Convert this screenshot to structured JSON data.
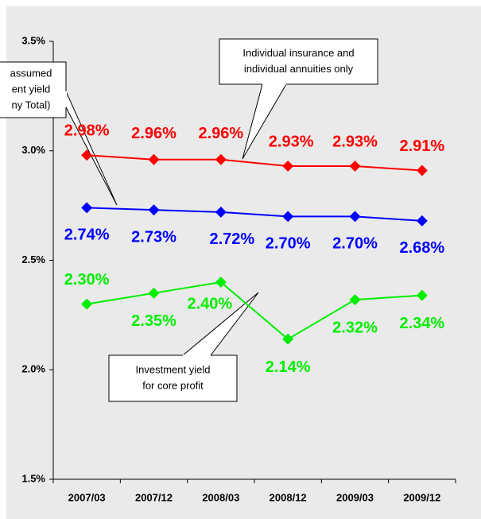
{
  "chart_data": {
    "type": "line",
    "categories": [
      "2007/03",
      "2007/12",
      "2008/03",
      "2008/12",
      "2009/03",
      "2009/12"
    ],
    "series": [
      {
        "color": "#ff0000",
        "values": [
          2.98,
          2.96,
          2.96,
          2.93,
          2.93,
          2.91
        ],
        "value_labels": [
          "2.98%",
          "2.96%",
          "2.96%",
          "2.93%",
          "2.93%",
          "2.91%"
        ]
      },
      {
        "color": "#0000ff",
        "values": [
          2.74,
          2.73,
          2.72,
          2.7,
          2.7,
          2.68
        ],
        "value_labels": [
          "2.74%",
          "2.73%",
          "2.72%",
          "2.70%",
          "2.70%",
          "2.68%"
        ]
      },
      {
        "color": "#00ee00",
        "values": [
          2.3,
          2.35,
          2.4,
          2.14,
          2.32,
          2.34
        ],
        "value_labels": [
          "2.30%",
          "2.35%",
          "2.40%",
          "2.14%",
          "2.32%",
          "2.34%"
        ]
      }
    ],
    "ylim": [
      1.5,
      3.5
    ],
    "yticks": [
      {
        "value": 1.5,
        "label": "1.5%"
      },
      {
        "value": 2.0,
        "label": "2.0%"
      },
      {
        "value": 2.5,
        "label": "2.5%"
      },
      {
        "value": 3.0,
        "label": "3.0%"
      },
      {
        "value": 3.5,
        "label": "3.5%"
      }
    ],
    "annotations": [
      {
        "lines": [
          "Individual insurance and",
          "individual annuities only"
        ]
      },
      {
        "lines": [
          "assumed",
          "ent yield",
          "ny Total)"
        ]
      },
      {
        "lines": [
          "Investment yield",
          "for core profit"
        ]
      }
    ]
  }
}
